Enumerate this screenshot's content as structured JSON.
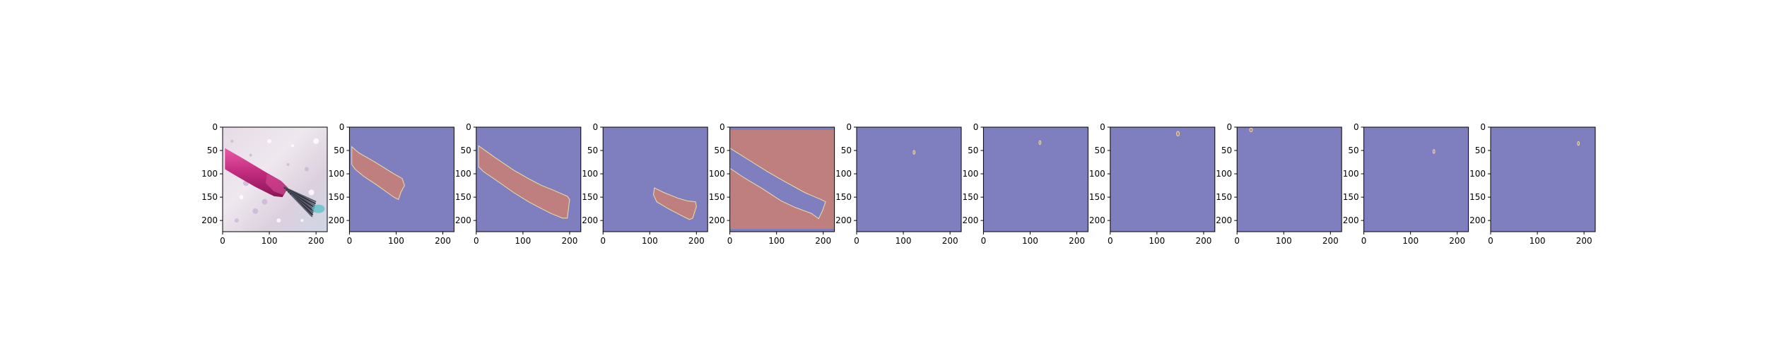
{
  "figure": {
    "background": "#ffffff",
    "colors": {
      "background_class": "#7f7fbf",
      "foreground_class": "#bf7f7f",
      "boundary": "#e8e0a8",
      "axes_frame": "#000000"
    }
  },
  "chart_data": [
    {
      "type": "heatmap",
      "content": "photo-nail-polish-brush",
      "xlim": [
        0,
        224
      ],
      "ylim": [
        224,
        0
      ],
      "xticks": [
        "0",
        "100",
        "200"
      ],
      "yticks": [
        "0",
        "50",
        "100",
        "150",
        "200"
      ],
      "regions": []
    },
    {
      "type": "heatmap",
      "content": "segmentation-mask",
      "xlim": [
        0,
        224
      ],
      "ylim": [
        224,
        0
      ],
      "xticks": [
        "0",
        "100",
        "200"
      ],
      "yticks": [
        "0",
        "50",
        "100",
        "150",
        "200"
      ],
      "regions": [
        {
          "class": "foreground",
          "polygon": [
            [
              5,
              42
            ],
            [
              20,
              55
            ],
            [
              55,
              75
            ],
            [
              95,
              100
            ],
            [
              113,
              110
            ],
            [
              118,
              125
            ],
            [
              110,
              140
            ],
            [
              105,
              155
            ],
            [
              95,
              150
            ],
            [
              60,
              125
            ],
            [
              30,
              105
            ],
            [
              12,
              90
            ],
            [
              5,
              80
            ]
          ]
        }
      ]
    },
    {
      "type": "heatmap",
      "content": "segmentation-mask",
      "xlim": [
        0,
        224
      ],
      "ylim": [
        224,
        0
      ],
      "xticks": [
        "0",
        "100",
        "200"
      ],
      "yticks": [
        "0",
        "50",
        "100",
        "150",
        "200"
      ],
      "regions": [
        {
          "class": "foreground",
          "polygon": [
            [
              5,
              40
            ],
            [
              40,
              65
            ],
            [
              80,
              92
            ],
            [
              115,
              112
            ],
            [
              140,
              125
            ],
            [
              165,
              135
            ],
            [
              195,
              148
            ],
            [
              200,
              155
            ],
            [
              195,
              195
            ],
            [
              185,
              195
            ],
            [
              160,
              185
            ],
            [
              135,
              172
            ],
            [
              112,
              160
            ],
            [
              80,
              140
            ],
            [
              40,
              112
            ],
            [
              15,
              95
            ],
            [
              5,
              85
            ]
          ]
        }
      ]
    },
    {
      "type": "heatmap",
      "content": "segmentation-mask",
      "xlim": [
        0,
        224
      ],
      "ylim": [
        224,
        0
      ],
      "xticks": [
        "0",
        "100",
        "200"
      ],
      "yticks": [
        "0",
        "50",
        "100",
        "150",
        "200"
      ],
      "regions": [
        {
          "class": "foreground",
          "polygon": [
            [
              110,
              130
            ],
            [
              130,
              140
            ],
            [
              160,
              152
            ],
            [
              180,
              158
            ],
            [
              198,
              160
            ],
            [
              200,
              170
            ],
            [
              192,
              195
            ],
            [
              185,
              198
            ],
            [
              165,
              188
            ],
            [
              140,
              175
            ],
            [
              115,
              160
            ],
            [
              108,
              145
            ]
          ]
        }
      ]
    },
    {
      "type": "heatmap",
      "content": "segmentation-mask",
      "xlim": [
        0,
        224
      ],
      "ylim": [
        224,
        0
      ],
      "xticks": [
        "0",
        "100",
        "200"
      ],
      "yticks": [
        "0",
        "50",
        "100",
        "150",
        "200"
      ],
      "regions": [
        {
          "class": "foreground",
          "polygon": [
            [
              0,
              0
            ],
            [
              224,
              0
            ],
            [
              224,
              224
            ],
            [
              0,
              224
            ],
            [
              0,
              45
            ],
            [
              0,
              88
            ],
            [
              30,
              108
            ],
            [
              70,
              132
            ],
            [
              110,
              158
            ],
            [
              140,
              172
            ],
            [
              175,
              185
            ],
            [
              190,
              196
            ],
            [
              198,
              180
            ],
            [
              205,
              160
            ],
            [
              195,
              155
            ],
            [
              160,
              140
            ],
            [
              120,
              118
            ],
            [
              80,
              95
            ],
            [
              40,
              70
            ],
            [
              0,
              45
            ]
          ]
        },
        {
          "class": "background",
          "polygon": [
            [
              0,
              0
            ],
            [
              224,
              0
            ],
            [
              224,
              6
            ],
            [
              0,
              6
            ]
          ]
        },
        {
          "class": "background",
          "polygon": [
            [
              0,
              218
            ],
            [
              224,
              218
            ],
            [
              224,
              224
            ],
            [
              0,
              224
            ]
          ]
        }
      ]
    },
    {
      "type": "heatmap",
      "content": "segmentation-mask",
      "xlim": [
        0,
        224
      ],
      "ylim": [
        224,
        0
      ],
      "xticks": [
        "0",
        "100",
        "200"
      ],
      "yticks": [
        "0",
        "50",
        "100",
        "150",
        "200"
      ],
      "regions": [
        {
          "class": "foreground",
          "ellipse": [
            123,
            54,
            2,
            4
          ]
        }
      ]
    },
    {
      "type": "heatmap",
      "content": "segmentation-mask",
      "xlim": [
        0,
        224
      ],
      "ylim": [
        224,
        0
      ],
      "xticks": [
        "0",
        "100",
        "200"
      ],
      "yticks": [
        "0",
        "50",
        "100",
        "150",
        "200"
      ],
      "regions": [
        {
          "class": "foreground",
          "ellipse": [
            121,
            33,
            2,
            4
          ]
        }
      ]
    },
    {
      "type": "heatmap",
      "content": "segmentation-mask",
      "xlim": [
        0,
        224
      ],
      "ylim": [
        224,
        0
      ],
      "xticks": [
        "0",
        "100",
        "200"
      ],
      "yticks": [
        "0",
        "50",
        "100",
        "150",
        "200"
      ],
      "regions": [
        {
          "class": "foreground",
          "ellipse": [
            145,
            14,
            3,
            5
          ]
        }
      ]
    },
    {
      "type": "heatmap",
      "content": "segmentation-mask",
      "xlim": [
        0,
        224
      ],
      "ylim": [
        224,
        0
      ],
      "xticks": [
        "0",
        "100",
        "200"
      ],
      "yticks": [
        "0",
        "50",
        "100",
        "150",
        "200"
      ],
      "regions": [
        {
          "class": "foreground",
          "ellipse": [
            30,
            6,
            3,
            4
          ]
        }
      ]
    },
    {
      "type": "heatmap",
      "content": "segmentation-mask",
      "xlim": [
        0,
        224
      ],
      "ylim": [
        224,
        0
      ],
      "xticks": [
        "0",
        "100",
        "200"
      ],
      "yticks": [
        "0",
        "50",
        "100",
        "150",
        "200"
      ],
      "regions": [
        {
          "class": "foreground",
          "ellipse": [
            150,
            52,
            2,
            4
          ]
        }
      ]
    },
    {
      "type": "heatmap",
      "content": "segmentation-mask",
      "xlim": [
        0,
        224
      ],
      "ylim": [
        224,
        0
      ],
      "xticks": [
        "0",
        "100",
        "200"
      ],
      "yticks": [
        "0",
        "50",
        "100",
        "150",
        "200"
      ],
      "regions": [
        {
          "class": "foreground",
          "ellipse": [
            188,
            35,
            2,
            4
          ]
        }
      ]
    }
  ]
}
